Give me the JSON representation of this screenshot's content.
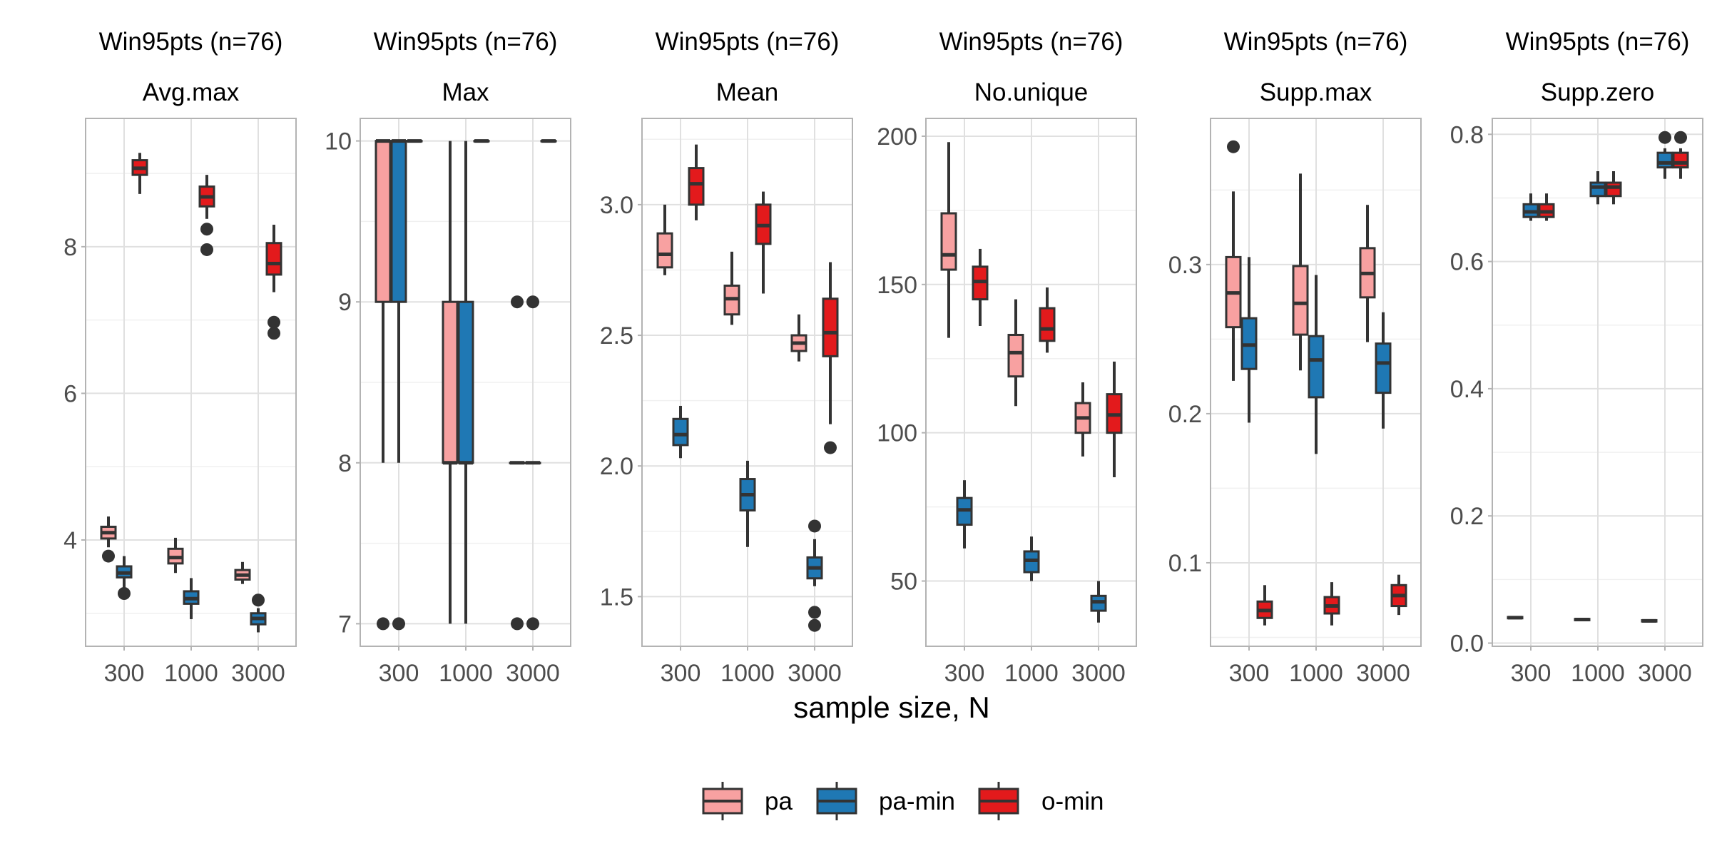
{
  "chart_data": {
    "type": "boxplot",
    "xlabel": "sample size, N",
    "x_categories": [
      "300",
      "1000",
      "3000"
    ],
    "series": [
      {
        "name": "pa",
        "color": "#f8a1a1"
      },
      {
        "name": "pa-min",
        "color": "#1f78b4"
      },
      {
        "name": "o-min",
        "color": "#e31a1c"
      }
    ],
    "grid": true,
    "legend_position": "bottom",
    "panels": [
      {
        "strip_top": "Win95pts (n=76)",
        "strip_bottom": "Avg.max",
        "ylim": [
          2.55,
          9.75
        ],
        "yticks": [
          4,
          6,
          8
        ],
        "ytick_labels": [
          "4",
          "6",
          "8"
        ],
        "minor_yticks": [
          3,
          5,
          7,
          9
        ],
        "boxes": [
          {
            "series": "pa",
            "x": "300",
            "whislo": 3.9,
            "q1": 4.02,
            "med": 4.1,
            "q3": 4.18,
            "whishi": 4.32,
            "outliers": [
              3.78
            ]
          },
          {
            "series": "pa-min",
            "x": "300",
            "whislo": 3.35,
            "q1": 3.49,
            "med": 3.55,
            "q3": 3.64,
            "whishi": 3.78,
            "outliers": [
              3.27
            ]
          },
          {
            "series": "o-min",
            "x": "300",
            "whislo": 8.72,
            "q1": 8.98,
            "med": 9.07,
            "q3": 9.18,
            "whishi": 9.28,
            "outliers": []
          },
          {
            "series": "pa",
            "x": "1000",
            "whislo": 3.55,
            "q1": 3.68,
            "med": 3.76,
            "q3": 3.88,
            "whishi": 4.03,
            "outliers": []
          },
          {
            "series": "pa-min",
            "x": "1000",
            "whislo": 2.92,
            "q1": 3.13,
            "med": 3.2,
            "q3": 3.3,
            "whishi": 3.48,
            "outliers": []
          },
          {
            "series": "o-min",
            "x": "1000",
            "whislo": 8.38,
            "q1": 8.55,
            "med": 8.68,
            "q3": 8.82,
            "whishi": 8.98,
            "outliers": [
              8.24,
              7.96
            ]
          },
          {
            "series": "pa",
            "x": "3000",
            "whislo": 3.4,
            "q1": 3.46,
            "med": 3.52,
            "q3": 3.59,
            "whishi": 3.7,
            "outliers": []
          },
          {
            "series": "pa-min",
            "x": "3000",
            "whislo": 2.74,
            "q1": 2.85,
            "med": 2.93,
            "q3": 3.0,
            "whishi": 3.07,
            "outliers": [
              3.18
            ]
          },
          {
            "series": "o-min",
            "x": "3000",
            "whislo": 7.38,
            "q1": 7.62,
            "med": 7.77,
            "q3": 8.05,
            "whishi": 8.3,
            "outliers": [
              6.97,
              6.82
            ]
          }
        ]
      },
      {
        "strip_top": "Win95pts (n=76)",
        "strip_bottom": "Max",
        "ylim": [
          6.86,
          10.14
        ],
        "yticks": [
          7,
          8,
          9,
          10
        ],
        "ytick_labels": [
          "7",
          "8",
          "9",
          "10"
        ],
        "minor_yticks": [
          7.5,
          8.5,
          9.5
        ],
        "boxes": [
          {
            "series": "pa",
            "x": "300",
            "whislo": 8,
            "q1": 9,
            "med": 10,
            "q3": 10,
            "whishi": 10,
            "outliers": [
              7
            ]
          },
          {
            "series": "pa-min",
            "x": "300",
            "whislo": 8,
            "q1": 9,
            "med": 10,
            "q3": 10,
            "whishi": 10,
            "outliers": [
              7
            ]
          },
          {
            "series": "o-min",
            "x": "300",
            "whislo": 10,
            "q1": 10,
            "med": 10,
            "q3": 10,
            "whishi": 10,
            "outliers": []
          },
          {
            "series": "pa",
            "x": "1000",
            "whislo": 7,
            "q1": 8,
            "med": 8,
            "q3": 9,
            "whishi": 10,
            "outliers": []
          },
          {
            "series": "pa-min",
            "x": "1000",
            "whislo": 7,
            "q1": 8,
            "med": 8,
            "q3": 9,
            "whishi": 10,
            "outliers": []
          },
          {
            "series": "o-min",
            "x": "1000",
            "whislo": 10,
            "q1": 10,
            "med": 10,
            "q3": 10,
            "whishi": 10,
            "outliers": []
          },
          {
            "series": "pa",
            "x": "3000",
            "whislo": 8,
            "q1": 8,
            "med": 8,
            "q3": 8,
            "whishi": 8,
            "outliers": [
              9,
              7
            ]
          },
          {
            "series": "pa-min",
            "x": "3000",
            "whislo": 8,
            "q1": 8,
            "med": 8,
            "q3": 8,
            "whishi": 8,
            "outliers": [
              9,
              7
            ]
          },
          {
            "series": "o-min",
            "x": "3000",
            "whislo": 10,
            "q1": 10,
            "med": 10,
            "q3": 10,
            "whishi": 10,
            "outliers": []
          }
        ]
      },
      {
        "strip_top": "Win95pts (n=76)",
        "strip_bottom": "Mean",
        "ylim": [
          1.31,
          3.33
        ],
        "yticks": [
          1.5,
          2.0,
          2.5,
          3.0
        ],
        "ytick_labels": [
          "1.5",
          "2.0",
          "2.5",
          "3.0"
        ],
        "minor_yticks": [
          1.75,
          2.25,
          2.75,
          3.25
        ],
        "boxes": [
          {
            "series": "pa",
            "x": "300",
            "whislo": 2.73,
            "q1": 2.76,
            "med": 2.81,
            "q3": 2.89,
            "whishi": 3.0,
            "outliers": []
          },
          {
            "series": "pa-min",
            "x": "300",
            "whislo": 2.03,
            "q1": 2.08,
            "med": 2.12,
            "q3": 2.18,
            "whishi": 2.23,
            "outliers": []
          },
          {
            "series": "o-min",
            "x": "300",
            "whislo": 2.94,
            "q1": 3.0,
            "med": 3.08,
            "q3": 3.14,
            "whishi": 3.23,
            "outliers": []
          },
          {
            "series": "pa",
            "x": "1000",
            "whislo": 2.54,
            "q1": 2.58,
            "med": 2.64,
            "q3": 2.69,
            "whishi": 2.82,
            "outliers": []
          },
          {
            "series": "pa-min",
            "x": "1000",
            "whislo": 1.69,
            "q1": 1.83,
            "med": 1.89,
            "q3": 1.95,
            "whishi": 2.02,
            "outliers": []
          },
          {
            "series": "o-min",
            "x": "1000",
            "whislo": 2.66,
            "q1": 2.85,
            "med": 2.92,
            "q3": 3.0,
            "whishi": 3.05,
            "outliers": []
          },
          {
            "series": "pa",
            "x": "3000",
            "whislo": 2.4,
            "q1": 2.44,
            "med": 2.47,
            "q3": 2.5,
            "whishi": 2.58,
            "outliers": []
          },
          {
            "series": "pa-min",
            "x": "3000",
            "whislo": 1.54,
            "q1": 1.57,
            "med": 1.61,
            "q3": 1.65,
            "whishi": 1.72,
            "outliers": [
              1.77,
              1.44,
              1.39
            ]
          },
          {
            "series": "o-min",
            "x": "3000",
            "whislo": 2.16,
            "q1": 2.42,
            "med": 2.51,
            "q3": 2.64,
            "whishi": 2.78,
            "outliers": [
              2.07
            ]
          }
        ]
      },
      {
        "strip_top": "Win95pts (n=76)",
        "strip_bottom": "No.unique",
        "ylim": [
          28,
          206
        ],
        "yticks": [
          50,
          100,
          150,
          200
        ],
        "ytick_labels": [
          "50",
          "100",
          "150",
          "200"
        ],
        "minor_yticks": [
          75,
          125,
          175
        ],
        "boxes": [
          {
            "series": "pa",
            "x": "300",
            "whislo": 132,
            "q1": 155,
            "med": 160,
            "q3": 174,
            "whishi": 198,
            "outliers": []
          },
          {
            "series": "pa-min",
            "x": "300",
            "whislo": 61,
            "q1": 69,
            "med": 74,
            "q3": 78,
            "whishi": 84,
            "outliers": []
          },
          {
            "series": "o-min",
            "x": "300",
            "whislo": 136,
            "q1": 145,
            "med": 151,
            "q3": 156,
            "whishi": 162,
            "outliers": []
          },
          {
            "series": "pa",
            "x": "1000",
            "whislo": 109,
            "q1": 119,
            "med": 127,
            "q3": 133,
            "whishi": 145,
            "outliers": []
          },
          {
            "series": "pa-min",
            "x": "1000",
            "whislo": 50,
            "q1": 53,
            "med": 57,
            "q3": 60,
            "whishi": 65,
            "outliers": []
          },
          {
            "series": "o-min",
            "x": "1000",
            "whislo": 127,
            "q1": 131,
            "med": 135,
            "q3": 142,
            "whishi": 149,
            "outliers": []
          },
          {
            "series": "pa",
            "x": "3000",
            "whislo": 92,
            "q1": 100,
            "med": 105,
            "q3": 110,
            "whishi": 117,
            "outliers": []
          },
          {
            "series": "pa-min",
            "x": "3000",
            "whislo": 36,
            "q1": 40,
            "med": 43,
            "q3": 45,
            "whishi": 50,
            "outliers": []
          },
          {
            "series": "o-min",
            "x": "3000",
            "whislo": 85,
            "q1": 100,
            "med": 106,
            "q3": 113,
            "whishi": 124,
            "outliers": []
          }
        ]
      },
      {
        "strip_top": "Win95pts (n=76)",
        "strip_bottom": "Supp.max",
        "ylim": [
          0.044,
          0.398
        ],
        "yticks": [
          0.1,
          0.2,
          0.3
        ],
        "ytick_labels": [
          "0.1",
          "0.2",
          "0.3"
        ],
        "minor_yticks": [
          0.05,
          0.15,
          0.25,
          0.35
        ],
        "boxes": [
          {
            "series": "pa",
            "x": "300",
            "whislo": 0.222,
            "q1": 0.258,
            "med": 0.281,
            "q3": 0.305,
            "whishi": 0.349,
            "outliers": [
              0.379
            ]
          },
          {
            "series": "pa-min",
            "x": "300",
            "whislo": 0.194,
            "q1": 0.23,
            "med": 0.246,
            "q3": 0.264,
            "whishi": 0.305,
            "outliers": []
          },
          {
            "series": "o-min",
            "x": "300",
            "whislo": 0.058,
            "q1": 0.063,
            "med": 0.068,
            "q3": 0.074,
            "whishi": 0.085,
            "outliers": []
          },
          {
            "series": "pa",
            "x": "1000",
            "whislo": 0.229,
            "q1": 0.253,
            "med": 0.274,
            "q3": 0.299,
            "whishi": 0.361,
            "outliers": []
          },
          {
            "series": "pa-min",
            "x": "1000",
            "whislo": 0.173,
            "q1": 0.211,
            "med": 0.236,
            "q3": 0.252,
            "whishi": 0.293,
            "outliers": []
          },
          {
            "series": "o-min",
            "x": "1000",
            "whislo": 0.058,
            "q1": 0.066,
            "med": 0.071,
            "q3": 0.077,
            "whishi": 0.087,
            "outliers": []
          },
          {
            "series": "pa",
            "x": "3000",
            "whislo": 0.248,
            "q1": 0.278,
            "med": 0.294,
            "q3": 0.311,
            "whishi": 0.34,
            "outliers": []
          },
          {
            "series": "pa-min",
            "x": "3000",
            "whislo": 0.19,
            "q1": 0.214,
            "med": 0.234,
            "q3": 0.247,
            "whishi": 0.268,
            "outliers": []
          },
          {
            "series": "o-min",
            "x": "3000",
            "whislo": 0.065,
            "q1": 0.071,
            "med": 0.078,
            "q3": 0.085,
            "whishi": 0.092,
            "outliers": []
          }
        ]
      },
      {
        "strip_top": "Win95pts (n=76)",
        "strip_bottom": "Supp.zero",
        "ylim": [
          -0.005,
          0.825
        ],
        "yticks": [
          0.0,
          0.2,
          0.4,
          0.6,
          0.8
        ],
        "ytick_labels": [
          "0.0",
          "0.2",
          "0.4",
          "0.6",
          "0.8"
        ],
        "minor_yticks": [
          0.1,
          0.3,
          0.5,
          0.7
        ],
        "boxes": [
          {
            "series": "pa",
            "x": "300",
            "whislo": 0.038,
            "q1": 0.039,
            "med": 0.04,
            "q3": 0.041,
            "whishi": 0.042,
            "outliers": []
          },
          {
            "series": "pa-min",
            "x": "300",
            "whislo": 0.664,
            "q1": 0.67,
            "med": 0.678,
            "q3": 0.69,
            "whishi": 0.707,
            "outliers": []
          },
          {
            "series": "o-min",
            "x": "300",
            "whislo": 0.664,
            "q1": 0.67,
            "med": 0.678,
            "q3": 0.69,
            "whishi": 0.707,
            "outliers": []
          },
          {
            "series": "pa",
            "x": "1000",
            "whislo": 0.035,
            "q1": 0.036,
            "med": 0.037,
            "q3": 0.038,
            "whishi": 0.039,
            "outliers": []
          },
          {
            "series": "pa-min",
            "x": "1000",
            "whislo": 0.69,
            "q1": 0.703,
            "med": 0.717,
            "q3": 0.724,
            "whishi": 0.742,
            "outliers": []
          },
          {
            "series": "o-min",
            "x": "1000",
            "whislo": 0.69,
            "q1": 0.703,
            "med": 0.717,
            "q3": 0.724,
            "whishi": 0.742,
            "outliers": []
          },
          {
            "series": "pa",
            "x": "3000",
            "whislo": 0.033,
            "q1": 0.034,
            "med": 0.035,
            "q3": 0.036,
            "whishi": 0.037,
            "outliers": []
          },
          {
            "series": "pa-min",
            "x": "3000",
            "whislo": 0.73,
            "q1": 0.748,
            "med": 0.755,
            "q3": 0.771,
            "whishi": 0.778,
            "outliers": [
              0.795
            ]
          },
          {
            "series": "o-min",
            "x": "3000",
            "whislo": 0.73,
            "q1": 0.748,
            "med": 0.755,
            "q3": 0.771,
            "whishi": 0.778,
            "outliers": [
              0.795
            ]
          }
        ]
      }
    ]
  }
}
